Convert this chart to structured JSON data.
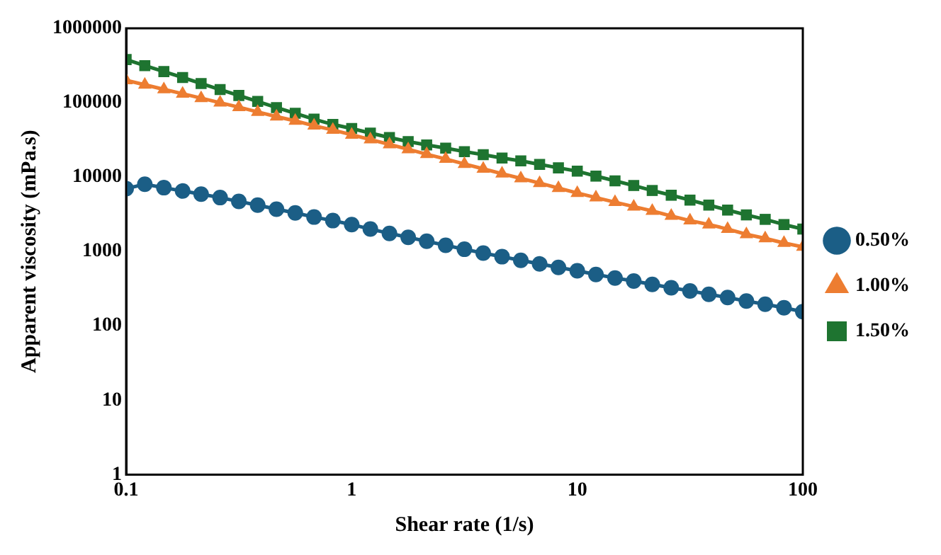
{
  "chart_data": {
    "type": "line",
    "xlabel": "Shear rate (1/s)",
    "ylabel": "Apparent viscosity (mPa.s)",
    "x": [
      0.1,
      0.121,
      0.147,
      0.178,
      0.215,
      0.261,
      0.316,
      0.383,
      0.464,
      0.562,
      0.681,
      0.825,
      1,
      1.21,
      1.47,
      1.78,
      2.15,
      2.61,
      3.16,
      3.83,
      4.64,
      5.62,
      6.81,
      8.25,
      10,
      12.1,
      14.7,
      17.8,
      21.5,
      26.1,
      31.6,
      38.3,
      46.4,
      56.2,
      68.1,
      82.5,
      100
    ],
    "series": [
      {
        "name": "0.50%",
        "color": "#1b5e86",
        "marker": "circle",
        "values": [
          7000,
          8000,
          7200,
          6500,
          5900,
          5300,
          4700,
          4200,
          3700,
          3300,
          2900,
          2600,
          2300,
          2000,
          1750,
          1550,
          1370,
          1210,
          1070,
          950,
          850,
          760,
          680,
          610,
          550,
          490,
          440,
          400,
          360,
          325,
          295,
          265,
          240,
          215,
          195,
          175,
          155
        ]
      },
      {
        "name": "1.00%",
        "color": "#ed7d31",
        "marker": "triangle",
        "values": [
          200000,
          174000,
          151000,
          132000,
          115000,
          100000,
          87000,
          75000,
          65000,
          57000,
          49000,
          43000,
          37000,
          32000,
          27500,
          23600,
          20300,
          17500,
          15000,
          12900,
          11100,
          9600,
          8300,
          7100,
          6100,
          5300,
          4600,
          4000,
          3500,
          3000,
          2600,
          2300,
          2000,
          1700,
          1500,
          1300,
          1150
        ]
      },
      {
        "name": "1.50%",
        "color": "#1e7430",
        "marker": "square",
        "values": [
          380000,
          315000,
          262000,
          218000,
          181000,
          150000,
          125000,
          104000,
          86000,
          72000,
          60000,
          51000,
          45000,
          39000,
          34000,
          30000,
          27000,
          24500,
          22000,
          20000,
          18000,
          16500,
          14800,
          13300,
          12000,
          10300,
          8900,
          7700,
          6600,
          5700,
          4900,
          4200,
          3600,
          3100,
          2700,
          2300,
          2000
        ]
      }
    ],
    "log": "xy",
    "xlim": [
      0.1,
      100
    ],
    "xticks": [
      0.1,
      1,
      10,
      100
    ],
    "ylim": [
      1,
      1000000
    ],
    "yticks": [
      1,
      10,
      100,
      1000,
      10000,
      100000,
      1000000
    ],
    "grid": false,
    "legend": "right",
    "line_style": "solid"
  }
}
